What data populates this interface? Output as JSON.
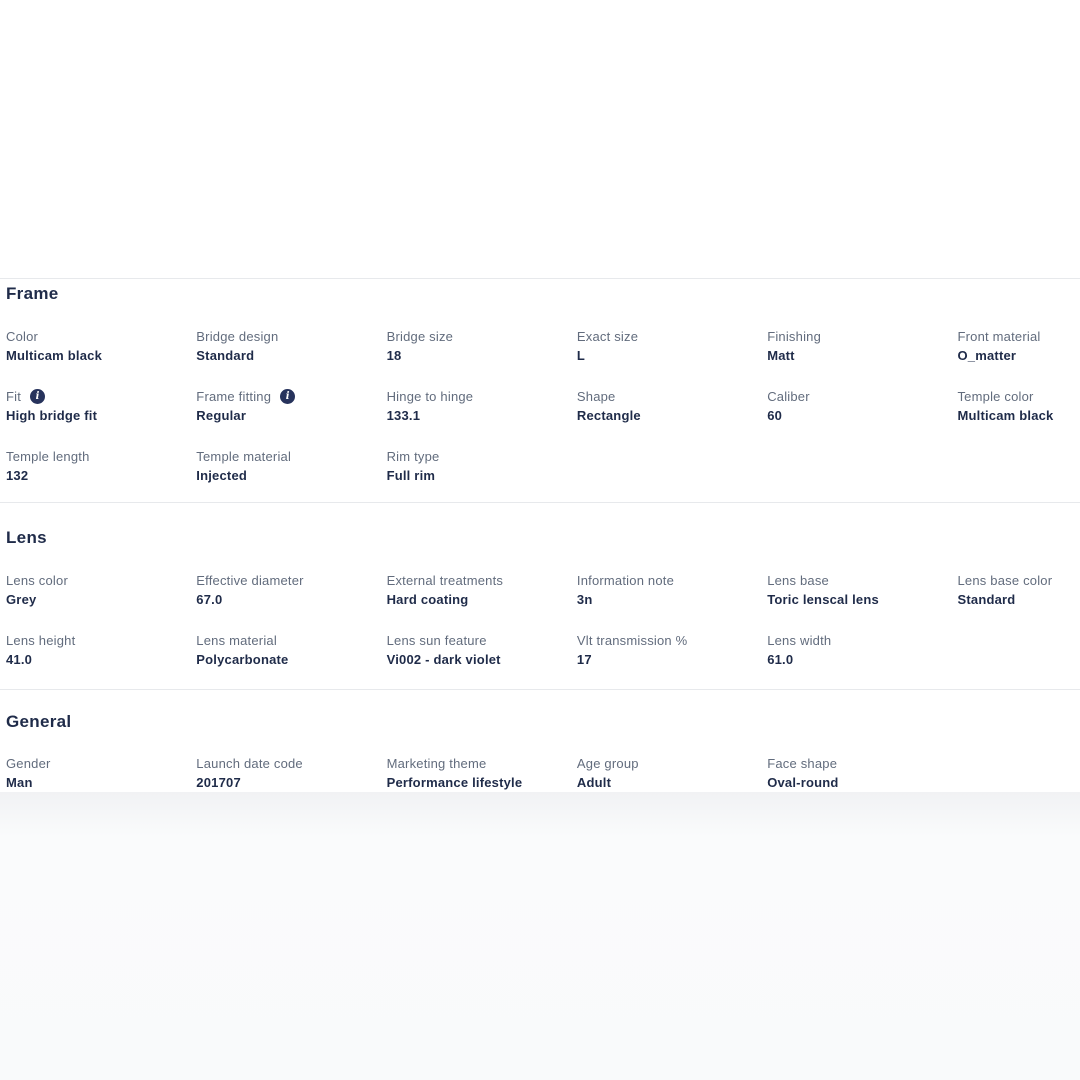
{
  "colors": {
    "heading": "#1f2b49",
    "label": "#626c7d",
    "value": "#1f2b49",
    "divider": "#e7e9ec",
    "info_icon": "#27335c",
    "footer_background": "#f9fafb"
  },
  "icons": {
    "info": "i"
  },
  "sections": [
    {
      "title": "Frame",
      "fields": [
        {
          "label": "Color",
          "value": "Multicam black"
        },
        {
          "label": "Bridge design",
          "value": "Standard"
        },
        {
          "label": "Bridge size",
          "value": "18"
        },
        {
          "label": "Exact size",
          "value": "L"
        },
        {
          "label": "Finishing",
          "value": "Matt"
        },
        {
          "label": "Front material",
          "value": "O_matter"
        },
        {
          "label": "Fit",
          "value": "High bridge fit",
          "info": true
        },
        {
          "label": "Frame fitting",
          "value": "Regular",
          "info": true
        },
        {
          "label": "Hinge to hinge",
          "value": "133.1"
        },
        {
          "label": "Shape",
          "value": "Rectangle"
        },
        {
          "label": "Caliber",
          "value": "60"
        },
        {
          "label": "Temple color",
          "value": "Multicam black"
        },
        {
          "label": "Temple length",
          "value": "132"
        },
        {
          "label": "Temple material",
          "value": "Injected"
        },
        {
          "label": "Rim type",
          "value": "Full rim"
        }
      ]
    },
    {
      "title": "Lens",
      "fields": [
        {
          "label": "Lens color",
          "value": "Grey"
        },
        {
          "label": "Effective diameter",
          "value": "67.0"
        },
        {
          "label": "External treatments",
          "value": "Hard coating"
        },
        {
          "label": "Information note",
          "value": "3n"
        },
        {
          "label": "Lens base",
          "value": "Toric lenscal lens"
        },
        {
          "label": "Lens base color",
          "value": "Standard"
        },
        {
          "label": "Lens height",
          "value": "41.0"
        },
        {
          "label": "Lens material",
          "value": "Polycarbonate"
        },
        {
          "label": "Lens sun feature",
          "value": "Vi002 - dark violet"
        },
        {
          "label": "Vlt transmission %",
          "value": "17"
        },
        {
          "label": "Lens width",
          "value": "61.0"
        }
      ]
    },
    {
      "title": "General",
      "fields": [
        {
          "label": "Gender",
          "value": "Man"
        },
        {
          "label": "Launch date code",
          "value": "201707"
        },
        {
          "label": "Marketing theme",
          "value": "Performance lifestyle"
        },
        {
          "label": "Age group",
          "value": "Adult"
        },
        {
          "label": "Face shape",
          "value": "Oval-round"
        }
      ]
    }
  ]
}
